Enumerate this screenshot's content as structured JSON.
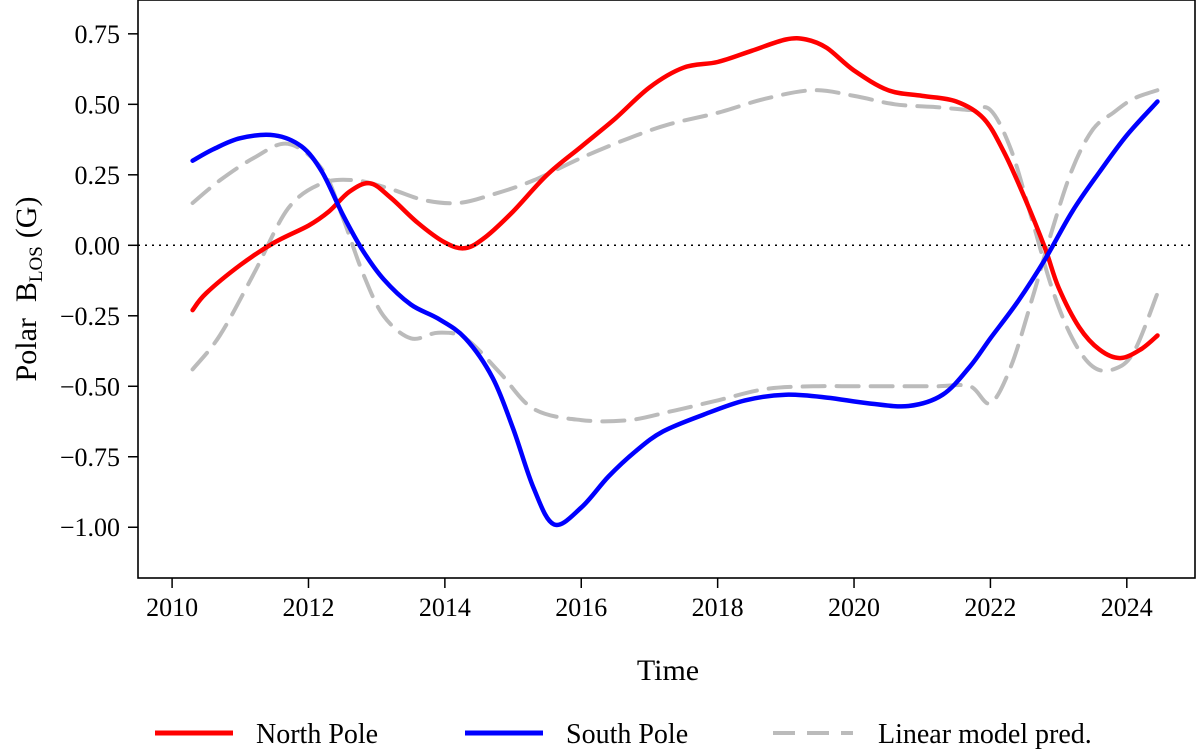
{
  "chart_data": {
    "type": "line",
    "title": "",
    "xlabel": "Time",
    "ylabel": {
      "prefix": "Polar",
      "symbol": "B",
      "subscript": "LOS",
      "unit": "(G)"
    },
    "xlim": [
      2009.5,
      2025.0
    ],
    "ylim": [
      -1.18,
      0.87
    ],
    "x_ticks": [
      2010,
      2012,
      2014,
      2016,
      2018,
      2020,
      2022,
      2024
    ],
    "x_tick_labels": [
      "2010",
      "2012",
      "2014",
      "2016",
      "2018",
      "2020",
      "2022",
      "2024"
    ],
    "y_ticks": [
      0.75,
      0.5,
      0.25,
      0.0,
      -0.25,
      -0.5,
      -0.75,
      -1.0
    ],
    "y_tick_labels": [
      "0.75",
      "0.50",
      "0.25",
      "0.00",
      "−0.25",
      "−0.50",
      "−0.75",
      "−1.00"
    ],
    "zero_line": true,
    "grid": false,
    "legend_position": "bottom",
    "series": [
      {
        "name": "North Pole",
        "color": "#ff0000",
        "style": "solid-thick",
        "x": [
          2010.3,
          2010.5,
          2011.0,
          2011.5,
          2012.0,
          2012.3,
          2012.6,
          2012.9,
          2013.2,
          2013.6,
          2014.0,
          2014.3,
          2014.6,
          2015.0,
          2015.5,
          2016.0,
          2016.5,
          2017.0,
          2017.5,
          2018.0,
          2018.5,
          2019.0,
          2019.3,
          2019.6,
          2020.0,
          2020.5,
          2021.0,
          2021.5,
          2021.9,
          2022.2,
          2022.5,
          2022.8,
          2023.0,
          2023.3,
          2023.6,
          2023.9,
          2024.2,
          2024.45
        ],
        "values": [
          -0.23,
          -0.17,
          -0.07,
          0.01,
          0.07,
          0.12,
          0.19,
          0.22,
          0.17,
          0.08,
          0.01,
          -0.01,
          0.03,
          0.12,
          0.25,
          0.35,
          0.45,
          0.56,
          0.63,
          0.65,
          0.69,
          0.73,
          0.73,
          0.7,
          0.62,
          0.55,
          0.53,
          0.51,
          0.45,
          0.33,
          0.17,
          -0.01,
          -0.15,
          -0.29,
          -0.37,
          -0.4,
          -0.37,
          -0.32
        ]
      },
      {
        "name": "South Pole",
        "color": "#0000ff",
        "style": "solid-thick",
        "x": [
          2010.3,
          2010.6,
          2011.0,
          2011.5,
          2011.9,
          2012.2,
          2012.5,
          2012.8,
          2013.1,
          2013.5,
          2013.9,
          2014.3,
          2014.7,
          2015.0,
          2015.3,
          2015.6,
          2016.0,
          2016.4,
          2016.8,
          2017.2,
          2017.8,
          2018.4,
          2019.0,
          2019.6,
          2020.2,
          2020.8,
          2021.3,
          2021.7,
          2022.0,
          2022.4,
          2022.8,
          2023.2,
          2023.6,
          2024.0,
          2024.45
        ],
        "values": [
          0.3,
          0.34,
          0.38,
          0.39,
          0.35,
          0.26,
          0.11,
          -0.02,
          -0.12,
          -0.21,
          -0.26,
          -0.33,
          -0.47,
          -0.65,
          -0.86,
          -0.99,
          -0.93,
          -0.82,
          -0.73,
          -0.66,
          -0.6,
          -0.55,
          -0.53,
          -0.54,
          -0.56,
          -0.57,
          -0.53,
          -0.43,
          -0.33,
          -0.2,
          -0.05,
          0.12,
          0.26,
          0.39,
          0.51
        ]
      },
      {
        "name": "Linear model pred. (north)",
        "color": "#bbbbbb",
        "style": "dashed",
        "x": [
          2010.3,
          2010.7,
          2011.2,
          2011.7,
          2012.2,
          2012.7,
          2013.2,
          2013.7,
          2014.2,
          2014.7,
          2015.3,
          2016.0,
          2016.7,
          2017.3,
          2018.0,
          2018.7,
          2019.4,
          2020.0,
          2020.6,
          2021.2,
          2021.7,
          2022.0,
          2022.3,
          2022.6,
          2022.9,
          2023.2,
          2023.5,
          2023.8,
          2024.1,
          2024.45
        ],
        "values": [
          -0.44,
          -0.32,
          -0.1,
          0.13,
          0.22,
          0.23,
          0.2,
          0.16,
          0.15,
          0.18,
          0.23,
          0.31,
          0.38,
          0.43,
          0.47,
          0.52,
          0.55,
          0.53,
          0.5,
          0.49,
          0.48,
          0.48,
          0.34,
          0.1,
          -0.15,
          -0.33,
          -0.43,
          -0.44,
          -0.38,
          -0.17
        ]
      },
      {
        "name": "Linear model pred. (south)",
        "color": "#bbbbbb",
        "style": "dashed",
        "x": [
          2010.3,
          2010.7,
          2011.2,
          2011.7,
          2012.2,
          2012.5,
          2012.8,
          2013.1,
          2013.5,
          2013.9,
          2014.3,
          2014.8,
          2015.3,
          2016.0,
          2016.7,
          2017.3,
          2018.0,
          2018.7,
          2019.4,
          2020.0,
          2020.6,
          2021.2,
          2021.7,
          2022.0,
          2022.3,
          2022.6,
          2022.9,
          2023.2,
          2023.5,
          2023.8,
          2024.1,
          2024.45
        ],
        "values": [
          0.15,
          0.23,
          0.31,
          0.36,
          0.27,
          0.1,
          -0.1,
          -0.25,
          -0.33,
          -0.31,
          -0.33,
          -0.45,
          -0.58,
          -0.62,
          -0.62,
          -0.59,
          -0.55,
          -0.51,
          -0.5,
          -0.5,
          -0.5,
          -0.5,
          -0.5,
          -0.56,
          -0.43,
          -0.2,
          0.05,
          0.27,
          0.41,
          0.47,
          0.52,
          0.55
        ]
      }
    ],
    "legend": [
      {
        "label": "North Pole",
        "color": "#ff0000",
        "style": "solid"
      },
      {
        "label": "South Pole",
        "color": "#0000ff",
        "style": "solid"
      },
      {
        "label": "Linear model pred.",
        "color": "#bbbbbb",
        "style": "dashed"
      }
    ]
  }
}
